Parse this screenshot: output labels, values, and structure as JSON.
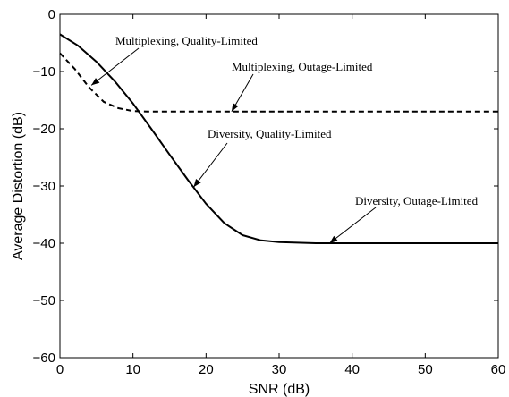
{
  "chart_data": {
    "type": "line",
    "xlabel": "SNR (dB)",
    "ylabel": "Average Distortion (dB)",
    "xlim": [
      0,
      60
    ],
    "ylim": [
      -60,
      0
    ],
    "xticks": [
      0,
      10,
      20,
      30,
      40,
      50,
      60
    ],
    "yticks": [
      0,
      -10,
      -20,
      -30,
      -40,
      -50,
      -60
    ],
    "grid": false,
    "series": [
      {
        "style": "solid",
        "x": [
          0,
          2.5,
          5,
          7.5,
          10,
          12.5,
          15,
          17.5,
          20,
          22.5,
          25,
          27.5,
          30,
          35,
          40,
          45,
          50,
          55,
          60
        ],
        "y": [
          -3.5,
          -5.5,
          -8.3,
          -11.7,
          -15.6,
          -20.0,
          -24.5,
          -28.9,
          -33.1,
          -36.5,
          -38.6,
          -39.5,
          -39.8,
          -40.0,
          -40.0,
          -40.0,
          -40.0,
          -40.0,
          -40.0
        ]
      },
      {
        "style": "dashed",
        "x": [
          0,
          2,
          4,
          6,
          8,
          10,
          12,
          20,
          30,
          40,
          50,
          60
        ],
        "y": [
          -6.8,
          -9.5,
          -12.8,
          -15.3,
          -16.4,
          -16.9,
          -17.0,
          -17.0,
          -17.0,
          -17.0,
          -17.0,
          -17.0
        ]
      }
    ],
    "annotations": [
      {
        "text": "Multiplexing, Quality-Limited",
        "target_x": 4.3,
        "target_y": -12.4
      },
      {
        "text": "Multiplexing, Outage-Limited",
        "target_x": 23.5,
        "target_y": -17.0
      },
      {
        "text": "Diversity, Quality-Limited",
        "target_x": 18.3,
        "target_y": -30.2
      },
      {
        "text": "Diversity, Outage-Limited",
        "target_x": 36.9,
        "target_y": -40.0
      }
    ]
  }
}
